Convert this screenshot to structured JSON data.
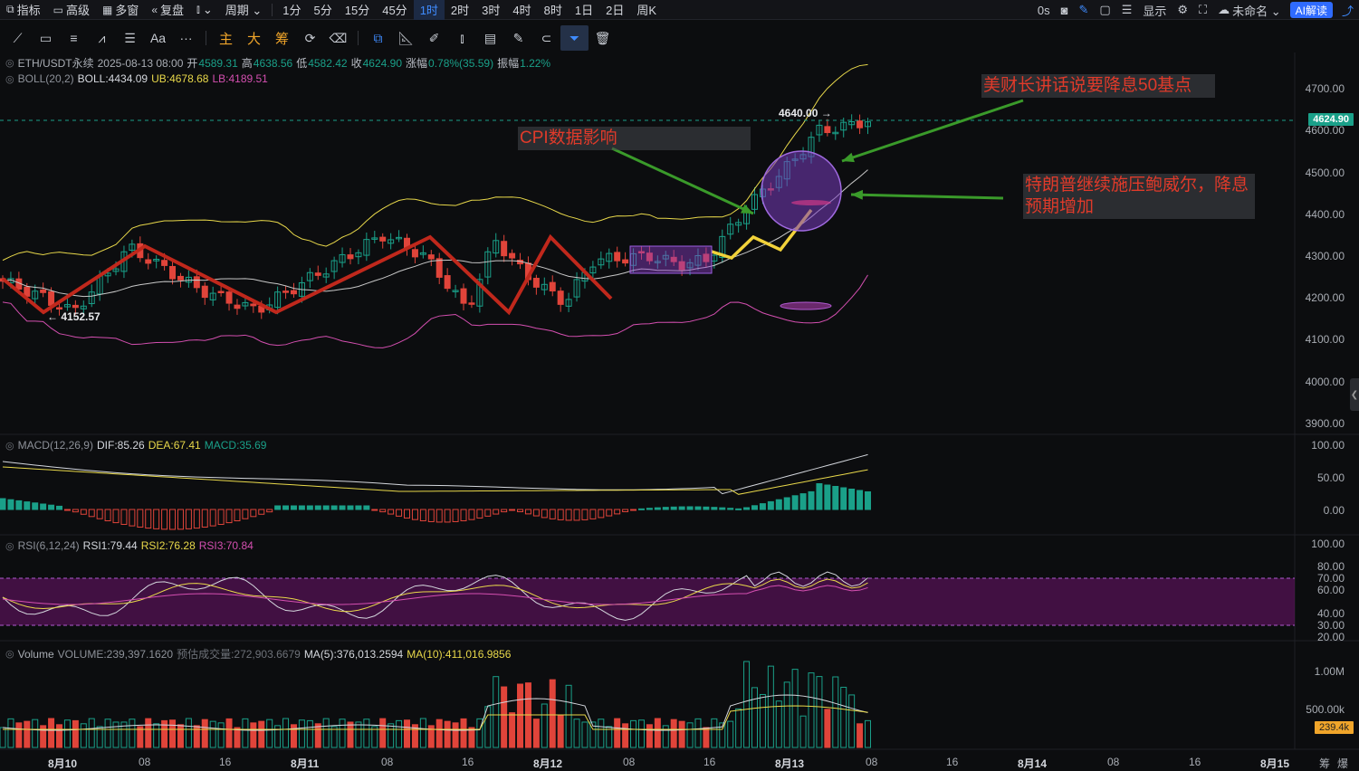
{
  "topbar": {
    "items": [
      {
        "icon": "indicator-icon",
        "label": "指标"
      },
      {
        "icon": "calendar-icon",
        "label": "高级"
      },
      {
        "icon": "grid-icon",
        "label": "多窗"
      },
      {
        "icon": "rewind-icon",
        "label": "复盘"
      },
      {
        "icon": "candle-type-icon",
        "label": "⌄"
      },
      {
        "icon": "",
        "label": "周期 ⌄"
      }
    ],
    "periods": [
      "1分",
      "5分",
      "15分",
      "45分",
      "1时",
      "2时",
      "3时",
      "4时",
      "8时",
      "1日",
      "2日",
      "周K"
    ],
    "active_period": "1时",
    "right": {
      "timer": "0s",
      "display_label": "显示",
      "account_label": "未命名 ⌄",
      "ai_button": "AI解读"
    }
  },
  "toolbar": {
    "tools": [
      "line-tool",
      "rect-tool",
      "parallel-tool",
      "wave-tool",
      "fib-tool",
      "text-tool",
      "more-tool"
    ],
    "text_tool_label": "Aa",
    "more_label": "···",
    "chip_labels": [
      "主",
      "大",
      "筹"
    ]
  },
  "legend": {
    "symbol": "ETH/USDT永续",
    "date": "2025-08-13 08:00",
    "open_label": "开",
    "open": "4589.31",
    "high_label": "高",
    "high": "4638.56",
    "low_label": "低",
    "low": "4582.42",
    "close_label": "收",
    "close": "4624.90",
    "change_label": "涨幅",
    "change": "0.78%(35.59)",
    "amp_label": "振幅",
    "amp": "1.22%",
    "boll_name": "BOLL(20,2)",
    "boll_mid": "BOLL:4434.09",
    "boll_ub": "UB:4678.68",
    "boll_lb": "LB:4189.51",
    "macd_name": "MACD(12,26,9)",
    "macd_dif": "DIF:85.26",
    "macd_dea": "DEA:67.41",
    "macd_val": "MACD:35.69",
    "rsi_name": "RSI(6,12,24)",
    "rsi1": "RSI1:79.44",
    "rsi2": "RSI2:76.28",
    "rsi3": "RSI3:70.84",
    "vol_name": "Volume",
    "vol_val": "VOLUME:239,397.1620",
    "vol_est": "预估成交量:272,903.6679",
    "vol_ma5": "MA(5):376,013.2594",
    "vol_ma10": "MA(10):411,016.9856"
  },
  "annotations": {
    "fed": "美财长讲话说要降息50基点",
    "cpi": "CPI数据影响",
    "trump": "特朗普继续施压鲍威尔，降息预期增加",
    "high_mark": "4640.00",
    "low_mark": "4152.57"
  },
  "price_axis": [
    "4700.00",
    "4600.00",
    "4500.00",
    "4400.00",
    "4300.00",
    "4200.00",
    "4100.00",
    "4000.00",
    "3900.00"
  ],
  "current_price": "4624.90",
  "macd_axis": [
    "100.00",
    "50.00",
    "0.00"
  ],
  "rsi_axis": [
    "100.00",
    "80.00",
    "70.00",
    "60.00",
    "40.00",
    "30.00",
    "20.00"
  ],
  "vol_axis": [
    "1.00M",
    "500.00k"
  ],
  "current_vol": "239.4k",
  "time_axis": [
    {
      "label": "8月10",
      "bold": true
    },
    {
      "label": "08",
      "bold": false
    },
    {
      "label": "16",
      "bold": false
    },
    {
      "label": "8月11",
      "bold": true
    },
    {
      "label": "08",
      "bold": false
    },
    {
      "label": "16",
      "bold": false
    },
    {
      "label": "8月12",
      "bold": true
    },
    {
      "label": "08",
      "bold": false
    },
    {
      "label": "16",
      "bold": false
    },
    {
      "label": "8月13",
      "bold": true
    },
    {
      "label": "08",
      "bold": false
    },
    {
      "label": "16",
      "bold": false
    },
    {
      "label": "8月14",
      "bold": true
    },
    {
      "label": "08",
      "bold": false
    },
    {
      "label": "16",
      "bold": false
    },
    {
      "label": "8月15",
      "bold": true
    }
  ],
  "corner_labels": [
    "筹",
    "爆"
  ],
  "colors": {
    "up": "#1aa089",
    "down": "#e0443a",
    "boll_mid": "#c8c8c8",
    "boll_ub": "#e8d84a",
    "boll_lb": "#d44fb0",
    "accent": "#3f8cff",
    "trend": "#c0281c",
    "projection": "#f2d23a"
  }
}
